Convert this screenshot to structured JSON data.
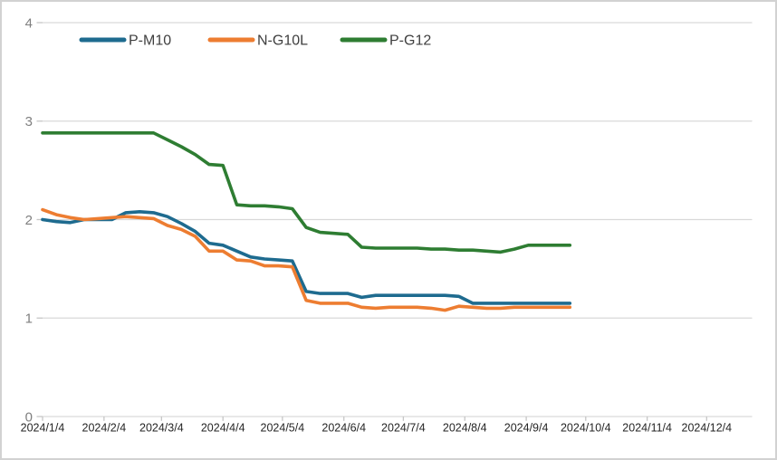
{
  "chart_data": {
    "type": "line",
    "title": "",
    "x": [
      "2024/1/4",
      "2024/1/11",
      "2024/1/18",
      "2024/1/25",
      "2024/2/1",
      "2024/2/8",
      "2024/2/15",
      "2024/2/22",
      "2024/2/29",
      "2024/3/7",
      "2024/3/14",
      "2024/3/21",
      "2024/3/28",
      "2024/4/4",
      "2024/4/11",
      "2024/4/18",
      "2024/4/25",
      "2024/5/2",
      "2024/5/9",
      "2024/5/16",
      "2024/5/23",
      "2024/5/30",
      "2024/6/6",
      "2024/6/13",
      "2024/6/20",
      "2024/6/27",
      "2024/7/4",
      "2024/7/11",
      "2024/7/18",
      "2024/7/25",
      "2024/8/1",
      "2024/8/8",
      "2024/8/15",
      "2024/8/22",
      "2024/8/29",
      "2024/9/5",
      "2024/9/12",
      "2024/9/19",
      "2024/9/26"
    ],
    "series": [
      {
        "name": "P-M10",
        "color": "#1e6b8f",
        "values": [
          2.0,
          1.98,
          1.97,
          2.0,
          2.0,
          2.0,
          2.07,
          2.08,
          2.07,
          2.03,
          1.96,
          1.88,
          1.76,
          1.74,
          1.68,
          1.62,
          1.6,
          1.59,
          1.58,
          1.27,
          1.25,
          1.25,
          1.25,
          1.21,
          1.23,
          1.23,
          1.23,
          1.23,
          1.23,
          1.23,
          1.22,
          1.15,
          1.15,
          1.15,
          1.15,
          1.15,
          1.15,
          1.15,
          1.15
        ]
      },
      {
        "name": "N-G10L",
        "color": "#ed7d31",
        "values": [
          2.1,
          2.05,
          2.02,
          2.0,
          2.01,
          2.02,
          2.03,
          2.02,
          2.01,
          1.94,
          1.9,
          1.83,
          1.68,
          1.68,
          1.59,
          1.58,
          1.53,
          1.53,
          1.52,
          1.18,
          1.15,
          1.15,
          1.15,
          1.11,
          1.1,
          1.11,
          1.11,
          1.11,
          1.1,
          1.08,
          1.12,
          1.11,
          1.1,
          1.1,
          1.11,
          1.11,
          1.11,
          1.11,
          1.11
        ]
      },
      {
        "name": "P-G12",
        "color": "#2e7d32",
        "values": [
          2.88,
          2.88,
          2.88,
          2.88,
          2.88,
          2.88,
          2.88,
          2.88,
          2.88,
          2.81,
          2.74,
          2.66,
          2.56,
          2.55,
          2.15,
          2.14,
          2.14,
          2.13,
          2.11,
          1.92,
          1.87,
          1.86,
          1.85,
          1.72,
          1.71,
          1.71,
          1.71,
          1.71,
          1.7,
          1.7,
          1.69,
          1.69,
          1.68,
          1.67,
          1.7,
          1.74,
          1.74,
          1.74,
          1.74
        ]
      }
    ],
    "x_axis_labels": [
      "2024/1/4",
      "2024/2/4",
      "2024/3/4",
      "2024/4/4",
      "2024/5/4",
      "2024/6/4",
      "2024/7/4",
      "2024/8/4",
      "2024/9/4",
      "2024/10/4",
      "2024/11/4",
      "2024/12/4"
    ],
    "yticks": [
      0,
      1,
      2,
      3,
      4
    ],
    "y_tick_labels": [
      "0",
      "1",
      "2",
      "3",
      "4"
    ],
    "ylim": [
      0,
      4
    ],
    "xlabel": "",
    "ylabel": "",
    "grid": true,
    "legend_position": "top-left",
    "colors": {
      "gridline": "#d9d9d9",
      "tick": "#c6c6c6",
      "y_label_text": "#7f7f7f",
      "x_label_text": "#262626",
      "legend_text": "#3f3f3f",
      "background": "#ffffff",
      "frame_border": "#d2d2d2"
    }
  }
}
